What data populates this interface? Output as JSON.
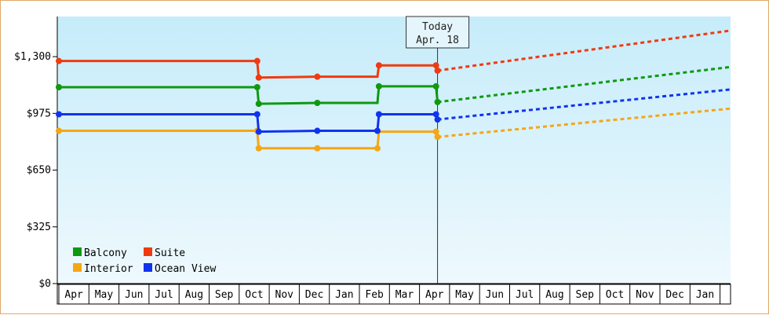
{
  "chart_data": {
    "type": "line",
    "x_labels": [
      "Apr",
      "May",
      "Jun",
      "Jul",
      "Aug",
      "Sep",
      "Oct",
      "Nov",
      "Dec",
      "Jan",
      "Feb",
      "Mar",
      "Apr",
      "May",
      "Jun",
      "Jul",
      "Aug",
      "Sep",
      "Oct",
      "Nov",
      "Dec",
      "Jan"
    ],
    "y_ticks": [
      {
        "value": 0,
        "label": "$0"
      },
      {
        "value": 325,
        "label": "$325"
      },
      {
        "value": 650,
        "label": "$650"
      },
      {
        "value": 975,
        "label": "$975"
      },
      {
        "value": 1300,
        "label": "$1,300"
      }
    ],
    "ylim": [
      0,
      1530
    ],
    "xlim": [
      0,
      22
    ],
    "today": {
      "line1": "Today",
      "line2": "Apr. 18",
      "x": 12.6
    },
    "colors": {
      "background_top": "#c6ecfa",
      "background_bottom": "#eef9fd",
      "frame_border": "#e0a868"
    },
    "series": [
      {
        "name": "Balcony",
        "color": "#109910",
        "history": [
          [
            0,
            1125
          ],
          [
            6.6,
            1125
          ],
          [
            6.65,
            1030
          ],
          [
            8.6,
            1035
          ],
          [
            10.6,
            1035
          ],
          [
            10.65,
            1130
          ],
          [
            12.55,
            1130
          ],
          [
            12.6,
            1040
          ]
        ],
        "markers": [
          [
            0,
            1125
          ],
          [
            6.6,
            1125
          ],
          [
            6.65,
            1030
          ],
          [
            8.6,
            1035
          ],
          [
            10.65,
            1130
          ],
          [
            12.55,
            1130
          ],
          [
            12.6,
            1040
          ]
        ],
        "forecast": [
          [
            12.6,
            1040
          ],
          [
            22.8,
            1250
          ]
        ]
      },
      {
        "name": "Suite",
        "color": "#f03a10",
        "history": [
          [
            0,
            1275
          ],
          [
            6.6,
            1275
          ],
          [
            6.65,
            1180
          ],
          [
            8.6,
            1185
          ],
          [
            10.6,
            1185
          ],
          [
            10.65,
            1250
          ],
          [
            12.55,
            1250
          ],
          [
            12.6,
            1220
          ]
        ],
        "markers": [
          [
            0,
            1275
          ],
          [
            6.6,
            1275
          ],
          [
            6.65,
            1180
          ],
          [
            8.6,
            1185
          ],
          [
            10.65,
            1250
          ],
          [
            12.55,
            1250
          ],
          [
            12.6,
            1220
          ]
        ],
        "forecast": [
          [
            12.6,
            1220
          ],
          [
            22.8,
            1460
          ]
        ]
      },
      {
        "name": "Interior",
        "color": "#f5a614",
        "history": [
          [
            0,
            875
          ],
          [
            6.6,
            875
          ],
          [
            6.65,
            775
          ],
          [
            8.6,
            775
          ],
          [
            10.6,
            775
          ],
          [
            10.65,
            870
          ],
          [
            12.55,
            870
          ],
          [
            12.6,
            840
          ]
        ],
        "markers": [
          [
            0,
            875
          ],
          [
            6.6,
            875
          ],
          [
            6.65,
            775
          ],
          [
            8.6,
            775
          ],
          [
            10.6,
            775
          ],
          [
            12.55,
            870
          ],
          [
            12.6,
            840
          ]
        ],
        "forecast": [
          [
            12.6,
            840
          ],
          [
            22.8,
            1010
          ]
        ]
      },
      {
        "name": "Ocean View",
        "color": "#1133ee",
        "history": [
          [
            0,
            970
          ],
          [
            6.6,
            970
          ],
          [
            6.65,
            870
          ],
          [
            8.6,
            875
          ],
          [
            10.6,
            875
          ],
          [
            10.65,
            970
          ],
          [
            12.55,
            970
          ],
          [
            12.6,
            940
          ]
        ],
        "markers": [
          [
            0,
            970
          ],
          [
            6.6,
            970
          ],
          [
            6.65,
            870
          ],
          [
            8.6,
            875
          ],
          [
            10.6,
            875
          ],
          [
            10.65,
            970
          ],
          [
            12.55,
            970
          ],
          [
            12.6,
            940
          ]
        ],
        "forecast": [
          [
            12.6,
            940
          ],
          [
            22.8,
            1120
          ]
        ]
      }
    ],
    "legend_order": [
      "Balcony",
      "Suite",
      "Interior",
      "Ocean View"
    ],
    "legend_position": "bottom-left"
  }
}
